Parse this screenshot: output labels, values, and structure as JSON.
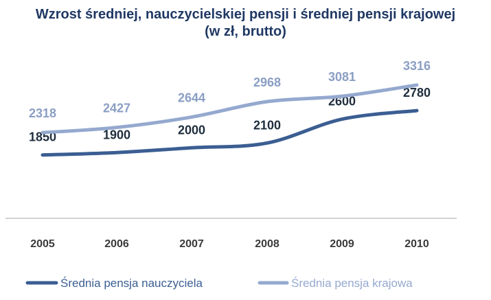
{
  "chart_data": {
    "type": "line",
    "title": "Wzrost średniej, nauczycielskiej pensji i średniej pensji krajowej",
    "subtitle": "(w zł, brutto)",
    "xlabel": "",
    "ylabel": "",
    "categories": [
      "2005",
      "2006",
      "2007",
      "2008",
      "2009",
      "2010"
    ],
    "series": [
      {
        "name": "Średnia pensja nauczyciela",
        "values": [
          1850,
          1900,
          2000,
          2100,
          2600,
          2780
        ],
        "color": "#3b5e92"
      },
      {
        "name": "Średnia pensja krajowa",
        "values": [
          2318,
          2427,
          2644,
          2968,
          3081,
          3316
        ],
        "color": "#95a9cf"
      }
    ],
    "legend_position": "bottom",
    "grid": false
  }
}
